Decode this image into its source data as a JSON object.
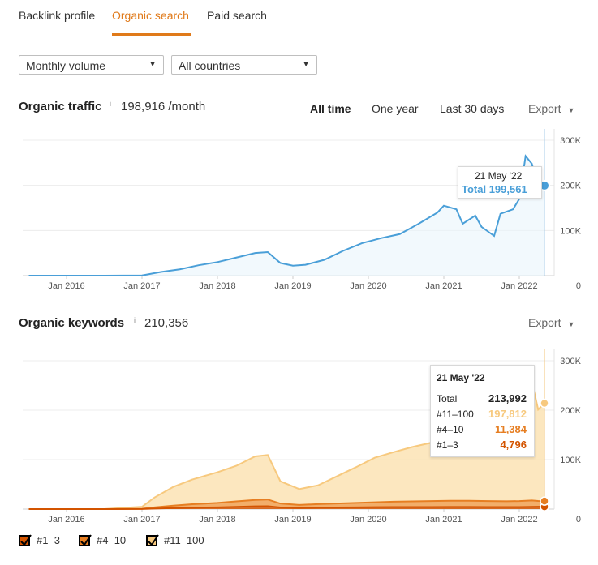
{
  "tabs": [
    {
      "label": "Backlink profile"
    },
    {
      "label": "Organic search"
    },
    {
      "label": "Paid search"
    }
  ],
  "filters": {
    "volume": "Monthly volume",
    "country": "All countries"
  },
  "traffic": {
    "title": "Organic traffic",
    "info": "i",
    "value": "198,916 /month",
    "ranges": [
      "All time",
      "One year",
      "Last 30 days"
    ],
    "export": "Export",
    "tooltip": {
      "date": "21 May '22",
      "label": "Total 199,561"
    }
  },
  "keywords": {
    "title": "Organic keywords",
    "info": "i",
    "value": "210,356",
    "export": "Export",
    "tooltip": {
      "date": "21 May '22",
      "rows": [
        {
          "label": "Total",
          "value": "213,992"
        },
        {
          "label": "#11–100",
          "value": "197,812"
        },
        {
          "label": "#4–10",
          "value": "11,384"
        },
        {
          "label": "#1–3",
          "value": "4,796"
        }
      ]
    }
  },
  "legend": [
    {
      "label": "#1–3",
      "color": "#d35400"
    },
    {
      "label": "#4–10",
      "color": "#e67e22"
    },
    {
      "label": "#11–100",
      "color": "#f7c97e"
    }
  ],
  "colors": {
    "accent": "#e07a1a",
    "traffic_line": "#4a9fd8",
    "kw_top3": "#d35400",
    "kw_4_10": "#e67e22",
    "kw_11_100": "#f7c97e"
  },
  "chart_data": [
    {
      "type": "line",
      "title": "Organic traffic",
      "x_ticks": [
        "Jan 2016",
        "Jan 2017",
        "Jan 2018",
        "Jan 2019",
        "Jan 2020",
        "Jan 2021",
        "Jan 2022"
      ],
      "y_ticks": [
        "0",
        "100K",
        "200K",
        "300K"
      ],
      "ylim": [
        0,
        300000
      ],
      "grid": true,
      "series": [
        {
          "name": "Total",
          "x": [
            "2015-07",
            "2016-01",
            "2016-07",
            "2017-01",
            "2017-04",
            "2017-07",
            "2017-10",
            "2018-01",
            "2018-04",
            "2018-07",
            "2018-09",
            "2018-11",
            "2019-01",
            "2019-03",
            "2019-06",
            "2019-09",
            "2019-12",
            "2020-03",
            "2020-06",
            "2020-09",
            "2020-12",
            "2021-01",
            "2021-03",
            "2021-04",
            "2021-06",
            "2021-07",
            "2021-09",
            "2021-10",
            "2021-12",
            "2022-01",
            "2022-02",
            "2022-03",
            "2022-04",
            "2022-05"
          ],
          "values": [
            0,
            0,
            0,
            500,
            8000,
            14000,
            23000,
            30000,
            40000,
            50000,
            52000,
            28000,
            22000,
            24000,
            35000,
            55000,
            72000,
            83000,
            92000,
            115000,
            140000,
            155000,
            147000,
            115000,
            133000,
            108000,
            88000,
            137000,
            147000,
            170000,
            265000,
            248000,
            195000,
            199561
          ]
        }
      ]
    },
    {
      "type": "area",
      "title": "Organic keywords",
      "x_ticks": [
        "Jan 2016",
        "Jan 2017",
        "Jan 2018",
        "Jan 2019",
        "Jan 2020",
        "Jan 2021",
        "Jan 2022"
      ],
      "y_ticks": [
        "0",
        "100K",
        "200K",
        "300K"
      ],
      "ylim": [
        0,
        300000
      ],
      "grid": true,
      "legend": "bottom-left",
      "x": [
        "2015-07",
        "2016-01",
        "2016-07",
        "2017-01",
        "2017-03",
        "2017-06",
        "2017-09",
        "2018-01",
        "2018-04",
        "2018-07",
        "2018-09",
        "2018-11",
        "2019-02",
        "2019-05",
        "2019-08",
        "2019-11",
        "2020-02",
        "2020-05",
        "2020-08",
        "2020-11",
        "2021-02",
        "2021-05",
        "2021-08",
        "2021-11",
        "2022-01",
        "2022-03",
        "2022-04",
        "2022-05"
      ],
      "series": [
        {
          "name": "#1–3",
          "values": [
            0,
            0,
            0,
            200,
            1000,
            2000,
            2800,
            3500,
            4500,
            5500,
            5800,
            3200,
            2500,
            3000,
            3300,
            3500,
            3800,
            4000,
            4100,
            4200,
            4300,
            4300,
            4100,
            4000,
            4200,
            4600,
            4800,
            4796
          ]
        },
        {
          "name": "#4–10",
          "values": [
            0,
            0,
            0,
            500,
            2500,
            5000,
            7000,
            9000,
            11000,
            13000,
            13500,
            8000,
            6000,
            7000,
            8000,
            9000,
            10000,
            11000,
            11500,
            12000,
            12500,
            12500,
            12000,
            11800,
            12000,
            12800,
            11500,
            11384
          ]
        },
        {
          "name": "#11–100",
          "values": [
            0,
            0,
            0,
            4000,
            20000,
            38000,
            50000,
            62000,
            72000,
            88000,
            90000,
            45000,
            32000,
            38000,
            55000,
            72000,
            90000,
            100000,
            110000,
            118000,
            120000,
            116000,
            112000,
            114000,
            140000,
            240000,
            185000,
            197812
          ]
        }
      ]
    }
  ]
}
